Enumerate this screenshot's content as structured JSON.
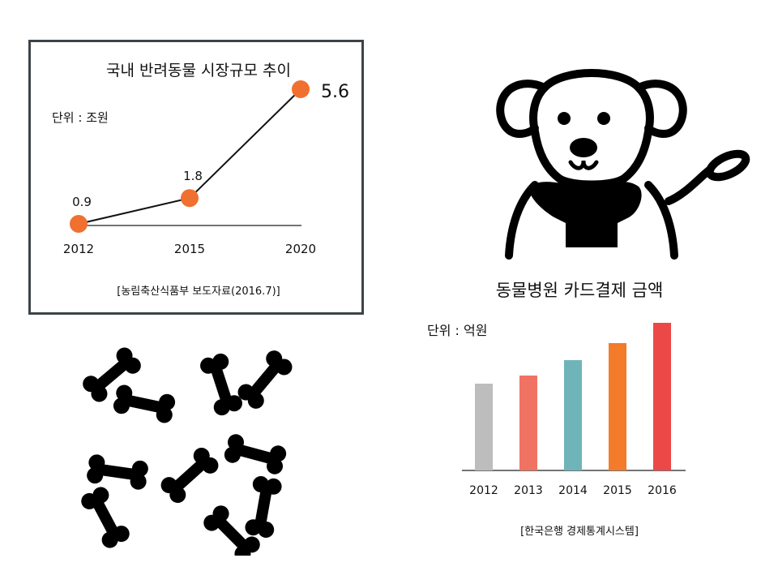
{
  "chart_data": [
    {
      "type": "line",
      "title": "국내 반려동물 시장규모 추이",
      "unit_label": "단위 : 조원",
      "source": "[농림축산식품부 보도자료(2016.7)]",
      "categories": [
        "2012",
        "2015",
        "2020"
      ],
      "values": [
        0.9,
        1.8,
        5.6
      ],
      "value_labels": [
        "0.9",
        "1.8",
        "5.6"
      ],
      "ylim": [
        0.9,
        5.6
      ],
      "grid": false,
      "colors": {
        "line": "#111111",
        "marker": "#f07030",
        "frame": "#3d4448"
      }
    },
    {
      "type": "bar",
      "title": "동물병원 카드결제 금액",
      "unit_label": "단위 : 억원",
      "source": "[한국은행 경제통계시스템]",
      "categories": [
        "2012",
        "2013",
        "2014",
        "2015",
        "2016"
      ],
      "values": [
        107,
        117,
        136,
        157,
        182
      ],
      "ylim": [
        0,
        182
      ],
      "grid": false,
      "colors": [
        "#bdbdbd",
        "#f07262",
        "#6fb4b8",
        "#f47b2a",
        "#ec4848"
      ]
    }
  ],
  "decorations": {
    "dog": {
      "icon": "dog-with-leash-icon",
      "color": "#000000"
    },
    "bones": {
      "icon": "bone-icon",
      "color": "#000000"
    }
  }
}
